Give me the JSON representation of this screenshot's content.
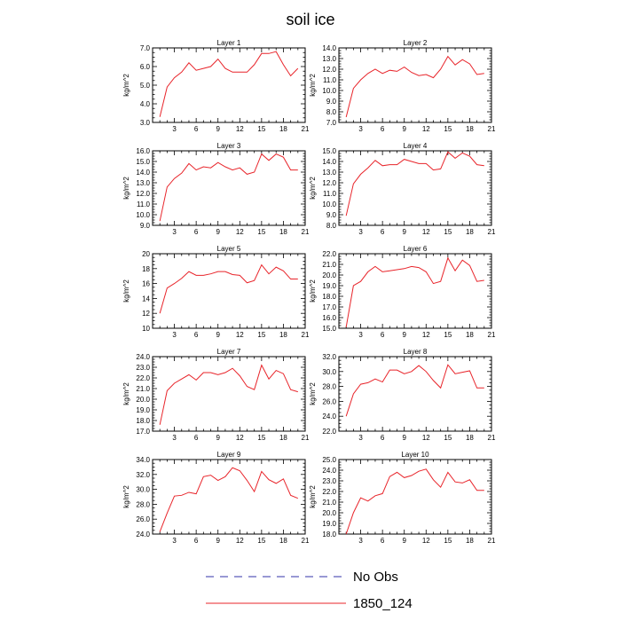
{
  "figure": {
    "title": "soil ice",
    "legend": [
      {
        "label": "No Obs",
        "color": "#3333aa",
        "style": "dashed"
      },
      {
        "label": "1850_124",
        "color": "#e8242a",
        "style": "solid"
      }
    ]
  },
  "chart_data": [
    {
      "type": "line",
      "title": "Layer 1",
      "ylabel": "kg/m^2",
      "xlim": [
        0,
        21
      ],
      "ylim": [
        3.0,
        7.0
      ],
      "xticks": [
        "3",
        "6",
        "9",
        "12",
        "15",
        "18",
        "21"
      ],
      "yticks": [
        "3.0",
        "4.0",
        "5.0",
        "6.0",
        "7.0"
      ],
      "x": [
        1,
        2,
        3,
        4,
        5,
        6,
        7,
        8,
        9,
        10,
        11,
        12,
        13,
        14,
        15,
        16,
        17,
        18,
        19,
        20
      ],
      "series": [
        {
          "name": "1850_124",
          "color": "#e8242a",
          "values": [
            3.3,
            4.9,
            5.4,
            5.7,
            6.2,
            5.8,
            5.9,
            6.0,
            6.4,
            5.9,
            5.7,
            5.7,
            5.7,
            6.1,
            6.7,
            6.7,
            6.8,
            6.1,
            5.5,
            5.9
          ]
        }
      ]
    },
    {
      "type": "line",
      "title": "Layer 2",
      "ylabel": "kg/m^2",
      "xlim": [
        0,
        21
      ],
      "ylim": [
        7.0,
        14.0
      ],
      "xticks": [
        "3",
        "6",
        "9",
        "12",
        "15",
        "18",
        "21"
      ],
      "yticks": [
        "7.0",
        "8.0",
        "9.0",
        "10.0",
        "11.0",
        "12.0",
        "13.0",
        "14.0"
      ],
      "x": [
        1,
        2,
        3,
        4,
        5,
        6,
        7,
        8,
        9,
        10,
        11,
        12,
        13,
        14,
        15,
        16,
        17,
        18,
        19,
        20
      ],
      "series": [
        {
          "name": "1850_124",
          "color": "#e8242a",
          "values": [
            7.5,
            10.2,
            11.0,
            11.6,
            12.0,
            11.6,
            11.9,
            11.8,
            12.2,
            11.7,
            11.4,
            11.5,
            11.2,
            12.0,
            13.2,
            12.4,
            12.9,
            12.5,
            11.5,
            11.6
          ]
        }
      ]
    },
    {
      "type": "line",
      "title": "Layer 3",
      "ylabel": "kg/m^2",
      "xlim": [
        0,
        21
      ],
      "ylim": [
        9.0,
        16.0
      ],
      "xticks": [
        "3",
        "6",
        "9",
        "12",
        "15",
        "18",
        "21"
      ],
      "yticks": [
        "9.0",
        "10.0",
        "11.0",
        "12.0",
        "13.0",
        "14.0",
        "15.0",
        "16.0"
      ],
      "x": [
        1,
        2,
        3,
        4,
        5,
        6,
        7,
        8,
        9,
        10,
        11,
        12,
        13,
        14,
        15,
        16,
        17,
        18,
        19,
        20
      ],
      "series": [
        {
          "name": "1850_124",
          "color": "#e8242a",
          "values": [
            9.4,
            12.6,
            13.4,
            13.9,
            14.8,
            14.2,
            14.5,
            14.4,
            14.9,
            14.5,
            14.2,
            14.4,
            13.8,
            14.0,
            15.7,
            15.1,
            15.7,
            15.4,
            14.2,
            14.2
          ]
        }
      ]
    },
    {
      "type": "line",
      "title": "Layer 4",
      "ylabel": "kg/m^2",
      "xlim": [
        0,
        21
      ],
      "ylim": [
        8.0,
        15.0
      ],
      "xticks": [
        "3",
        "6",
        "9",
        "12",
        "15",
        "18",
        "21"
      ],
      "yticks": [
        "8.0",
        "9.0",
        "10.0",
        "11.0",
        "12.0",
        "13.0",
        "14.0",
        "15.0"
      ],
      "x": [
        1,
        2,
        3,
        4,
        5,
        6,
        7,
        8,
        9,
        10,
        11,
        12,
        13,
        14,
        15,
        16,
        17,
        18,
        19,
        20
      ],
      "series": [
        {
          "name": "1850_124",
          "color": "#e8242a",
          "values": [
            8.9,
            11.9,
            12.8,
            13.4,
            14.1,
            13.6,
            13.7,
            13.7,
            14.2,
            14.0,
            13.8,
            13.8,
            13.2,
            13.3,
            14.9,
            14.3,
            14.8,
            14.5,
            13.7,
            13.6
          ]
        }
      ]
    },
    {
      "type": "line",
      "title": "Layer 5",
      "ylabel": "kg/m^2",
      "xlim": [
        0,
        21
      ],
      "ylim": [
        10,
        20
      ],
      "xticks": [
        "3",
        "6",
        "9",
        "12",
        "15",
        "18",
        "21"
      ],
      "yticks": [
        "10",
        "12",
        "14",
        "16",
        "18",
        "20"
      ],
      "x": [
        1,
        2,
        3,
        4,
        5,
        6,
        7,
        8,
        9,
        10,
        11,
        12,
        13,
        14,
        15,
        16,
        17,
        18,
        19,
        20
      ],
      "series": [
        {
          "name": "1850_124",
          "color": "#e8242a",
          "values": [
            12.0,
            15.4,
            16.0,
            16.7,
            17.6,
            17.1,
            17.1,
            17.3,
            17.6,
            17.6,
            17.2,
            17.1,
            16.1,
            16.4,
            18.5,
            17.3,
            18.2,
            17.7,
            16.6,
            16.6
          ]
        }
      ]
    },
    {
      "type": "line",
      "title": "Layer 6",
      "ylabel": "kg/m^2",
      "xlim": [
        0,
        21
      ],
      "ylim": [
        15.0,
        22.0
      ],
      "xticks": [
        "3",
        "6",
        "9",
        "12",
        "15",
        "18",
        "21"
      ],
      "yticks": [
        "15.0",
        "16.0",
        "17.0",
        "18.0",
        "19.0",
        "20.0",
        "21.0",
        "22.0"
      ],
      "x": [
        1,
        2,
        3,
        4,
        5,
        6,
        7,
        8,
        9,
        10,
        11,
        12,
        13,
        14,
        15,
        16,
        17,
        18,
        19,
        20
      ],
      "series": [
        {
          "name": "1850_124",
          "color": "#e8242a",
          "values": [
            15.1,
            19.0,
            19.4,
            20.3,
            20.8,
            20.3,
            20.4,
            20.5,
            20.6,
            20.8,
            20.7,
            20.3,
            19.2,
            19.4,
            21.6,
            20.4,
            21.4,
            20.9,
            19.4,
            19.5
          ]
        }
      ]
    },
    {
      "type": "line",
      "title": "Layer 7",
      "ylabel": "kg/m^2",
      "xlim": [
        0,
        21
      ],
      "ylim": [
        17.0,
        24.0
      ],
      "xticks": [
        "3",
        "6",
        "9",
        "12",
        "15",
        "18",
        "21"
      ],
      "yticks": [
        "17.0",
        "18.0",
        "19.0",
        "20.0",
        "21.0",
        "22.0",
        "23.0",
        "24.0"
      ],
      "x": [
        1,
        2,
        3,
        4,
        5,
        6,
        7,
        8,
        9,
        10,
        11,
        12,
        13,
        14,
        15,
        16,
        17,
        18,
        19,
        20
      ],
      "series": [
        {
          "name": "1850_124",
          "color": "#e8242a",
          "values": [
            17.6,
            20.8,
            21.5,
            21.9,
            22.3,
            21.8,
            22.5,
            22.5,
            22.3,
            22.5,
            22.9,
            22.2,
            21.2,
            20.9,
            23.2,
            21.9,
            22.7,
            22.4,
            20.9,
            20.7
          ]
        }
      ]
    },
    {
      "type": "line",
      "title": "Layer 8",
      "ylabel": "kg/m^2",
      "xlim": [
        0,
        21
      ],
      "ylim": [
        22.0,
        32.0
      ],
      "xticks": [
        "3",
        "6",
        "9",
        "12",
        "15",
        "18",
        "21"
      ],
      "yticks": [
        "22.0",
        "24.0",
        "26.0",
        "28.0",
        "30.0",
        "32.0"
      ],
      "x": [
        1,
        2,
        3,
        4,
        5,
        6,
        7,
        8,
        9,
        10,
        11,
        12,
        13,
        14,
        15,
        16,
        17,
        18,
        19,
        20
      ],
      "series": [
        {
          "name": "1850_124",
          "color": "#e8242a",
          "values": [
            24.0,
            27.0,
            28.3,
            28.5,
            29.0,
            28.6,
            30.2,
            30.2,
            29.7,
            30.0,
            30.8,
            30.0,
            28.8,
            27.8,
            30.9,
            29.7,
            29.9,
            30.1,
            27.8,
            27.8
          ]
        }
      ]
    },
    {
      "type": "line",
      "title": "Layer 9",
      "ylabel": "kg/m^2",
      "xlim": [
        0,
        21
      ],
      "ylim": [
        24.0,
        34.0
      ],
      "xticks": [
        "3",
        "6",
        "9",
        "12",
        "15",
        "18",
        "21"
      ],
      "yticks": [
        "24.0",
        "26.0",
        "28.0",
        "30.0",
        "32.0",
        "34.0"
      ],
      "x": [
        1,
        2,
        3,
        4,
        5,
        6,
        7,
        8,
        9,
        10,
        11,
        12,
        13,
        14,
        15,
        16,
        17,
        18,
        19,
        20
      ],
      "series": [
        {
          "name": "1850_124",
          "color": "#e8242a",
          "values": [
            24.3,
            26.8,
            29.1,
            29.2,
            29.6,
            29.4,
            31.7,
            31.9,
            31.2,
            31.7,
            32.9,
            32.5,
            31.2,
            29.7,
            32.4,
            31.3,
            30.8,
            31.4,
            29.2,
            28.8
          ]
        }
      ]
    },
    {
      "type": "line",
      "title": "Layer 10",
      "ylabel": "kg/m^2",
      "xlim": [
        0,
        21
      ],
      "ylim": [
        18.0,
        25.0
      ],
      "xticks": [
        "3",
        "6",
        "9",
        "12",
        "15",
        "18",
        "21"
      ],
      "yticks": [
        "18.0",
        "19.0",
        "20.0",
        "21.0",
        "22.0",
        "23.0",
        "24.0",
        "25.0"
      ],
      "x": [
        1,
        2,
        3,
        4,
        5,
        6,
        7,
        8,
        9,
        10,
        11,
        12,
        13,
        14,
        15,
        16,
        17,
        18,
        19,
        20
      ],
      "series": [
        {
          "name": "1850_124",
          "color": "#e8242a",
          "values": [
            18.0,
            20.0,
            21.4,
            21.1,
            21.6,
            21.8,
            23.4,
            23.8,
            23.3,
            23.5,
            23.9,
            24.1,
            23.1,
            22.4,
            23.8,
            22.9,
            22.8,
            23.1,
            22.1,
            22.1
          ]
        }
      ]
    }
  ]
}
